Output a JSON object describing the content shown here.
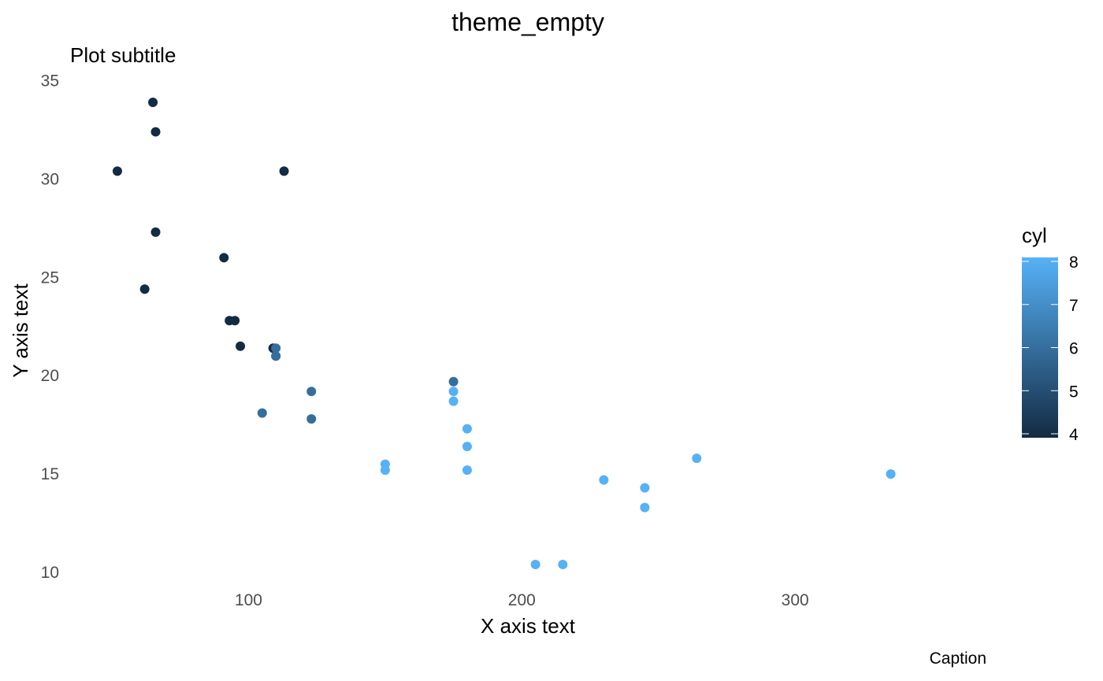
{
  "chart_data": {
    "type": "scatter",
    "title": "theme_empty",
    "subtitle": "Plot subtitle",
    "xlabel": "X axis text",
    "ylabel": "Y axis text",
    "caption": "Caption",
    "xlim": [
      35,
      370
    ],
    "ylim": [
      9.4,
      35.5
    ],
    "x_ticks": [
      100,
      200,
      300
    ],
    "y_ticks": [
      10,
      15,
      20,
      25,
      30,
      35
    ],
    "grid": false,
    "legend": {
      "title": "cyl",
      "placement": "right",
      "type": "colorbar",
      "range": [
        4,
        8
      ],
      "ticks": [
        4,
        5,
        6,
        7,
        8
      ],
      "low_color": "#132B43",
      "high_color": "#56B1F7"
    },
    "points": [
      {
        "x": 52,
        "y": 30.4,
        "cyl": 4
      },
      {
        "x": 62,
        "y": 24.4,
        "cyl": 4
      },
      {
        "x": 65,
        "y": 33.9,
        "cyl": 4
      },
      {
        "x": 66,
        "y": 32.4,
        "cyl": 4
      },
      {
        "x": 66,
        "y": 27.3,
        "cyl": 4
      },
      {
        "x": 91,
        "y": 26.0,
        "cyl": 4
      },
      {
        "x": 93,
        "y": 22.8,
        "cyl": 4
      },
      {
        "x": 95,
        "y": 22.8,
        "cyl": 4
      },
      {
        "x": 97,
        "y": 21.5,
        "cyl": 4
      },
      {
        "x": 109,
        "y": 21.4,
        "cyl": 4
      },
      {
        "x": 110,
        "y": 21.4,
        "cyl": 6
      },
      {
        "x": 110,
        "y": 21.0,
        "cyl": 6
      },
      {
        "x": 110,
        "y": 21.0,
        "cyl": 6
      },
      {
        "x": 105,
        "y": 18.1,
        "cyl": 6
      },
      {
        "x": 113,
        "y": 30.4,
        "cyl": 4
      },
      {
        "x": 123,
        "y": 19.2,
        "cyl": 6
      },
      {
        "x": 123,
        "y": 17.8,
        "cyl": 6
      },
      {
        "x": 150,
        "y": 15.5,
        "cyl": 8
      },
      {
        "x": 150,
        "y": 15.2,
        "cyl": 8
      },
      {
        "x": 175,
        "y": 19.7,
        "cyl": 6
      },
      {
        "x": 175,
        "y": 19.2,
        "cyl": 8
      },
      {
        "x": 175,
        "y": 18.7,
        "cyl": 8
      },
      {
        "x": 180,
        "y": 17.3,
        "cyl": 8
      },
      {
        "x": 180,
        "y": 16.4,
        "cyl": 8
      },
      {
        "x": 180,
        "y": 15.2,
        "cyl": 8
      },
      {
        "x": 205,
        "y": 10.4,
        "cyl": 8
      },
      {
        "x": 215,
        "y": 10.4,
        "cyl": 8
      },
      {
        "x": 230,
        "y": 14.7,
        "cyl": 8
      },
      {
        "x": 245,
        "y": 14.3,
        "cyl": 8
      },
      {
        "x": 245,
        "y": 13.3,
        "cyl": 8
      },
      {
        "x": 264,
        "y": 15.8,
        "cyl": 8
      },
      {
        "x": 335,
        "y": 15.0,
        "cyl": 8
      }
    ]
  }
}
